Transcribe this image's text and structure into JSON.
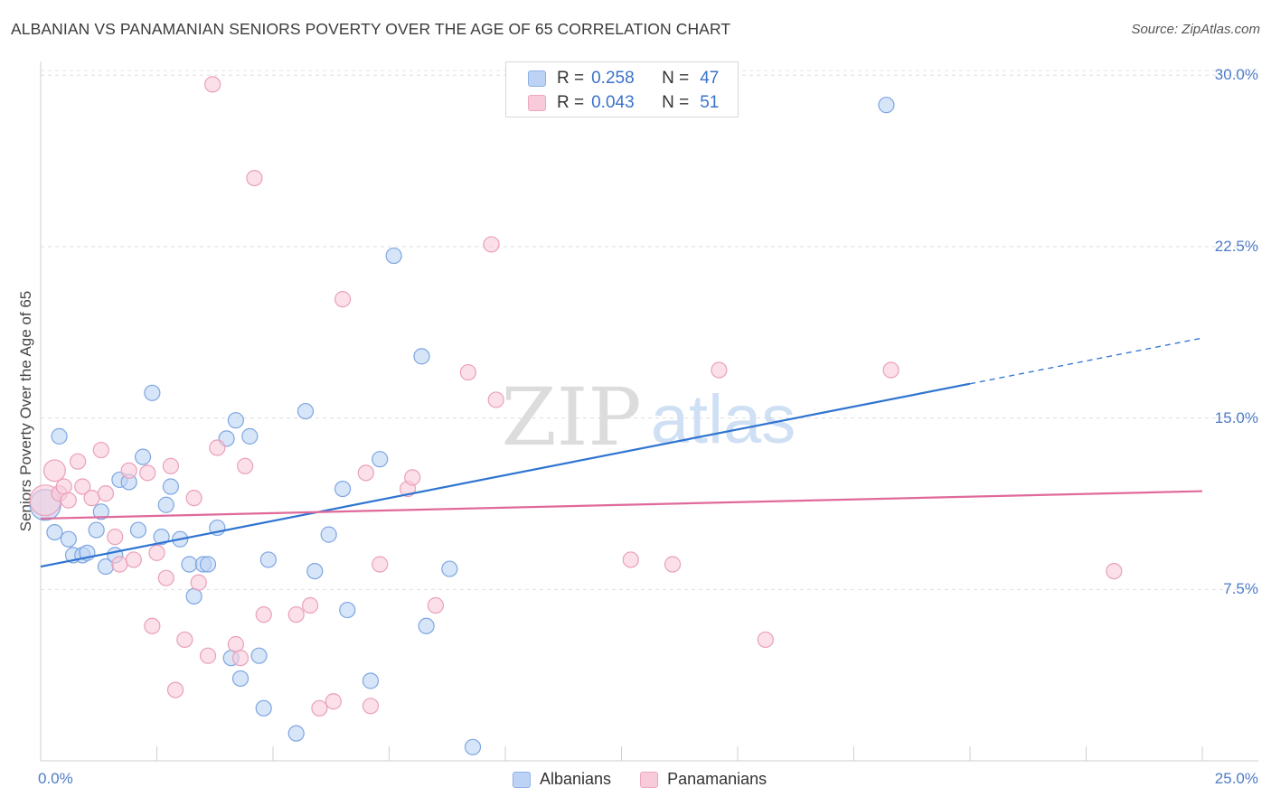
{
  "title": "ALBANIAN VS PANAMANIAN SENIORS POVERTY OVER THE AGE OF 65 CORRELATION CHART",
  "source": "Source: ZipAtlas.com",
  "watermark": {
    "zip": "ZIP",
    "atlas": "atlas"
  },
  "legend": {
    "r_label": "R =",
    "n_label": "N =",
    "albanians": {
      "r": "0.258",
      "n": "47"
    },
    "panamanians": {
      "r": "0.043",
      "n": "51"
    }
  },
  "bottom_legend": {
    "albanians": "Albanians",
    "panamanians": "Panamanians"
  },
  "colors": {
    "albanians_fill": "#bcd3f5",
    "albanians_stroke": "#7ea6e0",
    "albanians_line": "#2f74d0",
    "panamanians_fill": "#f9cbda",
    "panamanians_stroke": "#eaa0ba",
    "panamanians_line": "#e0699a",
    "tick_label": "#4d7cc7"
  },
  "chart_data": {
    "type": "scatter",
    "title": "ALBANIAN VS PANAMANIAN SENIORS POVERTY OVER THE AGE OF 65 CORRELATION CHART",
    "xlabel": "",
    "ylabel": "Seniors Poverty Over the Age of 65",
    "xlim": [
      0,
      25
    ],
    "ylim": [
      0,
      31
    ],
    "x_tick_labels": {
      "left": "0.0%",
      "right": "25.0%"
    },
    "y_ticks": [
      {
        "value": 7.5,
        "label": "7.5%"
      },
      {
        "value": 15.0,
        "label": "15.0%"
      },
      {
        "value": 22.5,
        "label": "22.5%"
      },
      {
        "value": 30.0,
        "label": "30.0%"
      }
    ],
    "series": [
      {
        "name": "Albanians",
        "r": 0.258,
        "n": 47,
        "trend": {
          "x0": 0,
          "y0": 8.5,
          "x1": 20.0,
          "y1": 16.5,
          "dash_to_x": 25.0,
          "dash_to_y": 18.5
        },
        "points": [
          [
            0.1,
            11.2,
            2
          ],
          [
            0.3,
            10.0,
            1
          ],
          [
            0.4,
            14.2,
            1
          ],
          [
            0.6,
            9.7,
            1
          ],
          [
            0.7,
            9.0,
            1
          ],
          [
            0.9,
            9.0,
            1
          ],
          [
            1.0,
            9.1,
            1
          ],
          [
            1.2,
            10.1,
            1
          ],
          [
            1.3,
            10.9,
            1
          ],
          [
            1.4,
            8.5,
            1
          ],
          [
            1.6,
            9.0,
            1
          ],
          [
            1.7,
            12.3,
            1
          ],
          [
            1.9,
            12.2,
            1
          ],
          [
            2.1,
            10.1,
            1
          ],
          [
            2.2,
            13.3,
            1
          ],
          [
            2.4,
            16.1,
            1
          ],
          [
            2.6,
            9.8,
            1
          ],
          [
            2.7,
            11.2,
            1
          ],
          [
            2.8,
            12.0,
            1
          ],
          [
            3.0,
            9.7,
            1
          ],
          [
            3.2,
            8.6,
            1
          ],
          [
            3.3,
            7.2,
            1
          ],
          [
            3.5,
            8.6,
            1
          ],
          [
            3.6,
            8.6,
            1
          ],
          [
            3.8,
            10.2,
            1
          ],
          [
            4.0,
            14.1,
            1
          ],
          [
            4.2,
            14.9,
            1
          ],
          [
            4.3,
            3.6,
            1
          ],
          [
            4.5,
            14.2,
            1
          ],
          [
            4.1,
            4.5,
            1
          ],
          [
            4.7,
            4.6,
            1
          ],
          [
            4.8,
            2.3,
            1
          ],
          [
            4.9,
            8.8,
            1
          ],
          [
            5.5,
            1.2,
            1
          ],
          [
            5.7,
            15.3,
            1
          ],
          [
            5.9,
            8.3,
            1
          ],
          [
            6.2,
            9.9,
            1
          ],
          [
            6.5,
            11.9,
            1
          ],
          [
            6.6,
            6.6,
            1
          ],
          [
            7.1,
            3.5,
            1
          ],
          [
            7.3,
            13.2,
            1
          ],
          [
            7.6,
            22.1,
            1
          ],
          [
            8.2,
            17.7,
            1
          ],
          [
            8.3,
            5.9,
            1
          ],
          [
            8.8,
            8.4,
            1
          ],
          [
            9.3,
            0.6,
            1
          ],
          [
            18.2,
            28.7,
            1
          ]
        ]
      },
      {
        "name": "Panamanians",
        "r": 0.043,
        "n": 51,
        "trend": {
          "x0": 0,
          "y0": 10.6,
          "x1": 25.0,
          "y1": 11.8
        },
        "points": [
          [
            0.1,
            11.4,
            2
          ],
          [
            0.3,
            12.7,
            1.4
          ],
          [
            0.4,
            11.7,
            1
          ],
          [
            0.5,
            12.0,
            1
          ],
          [
            0.6,
            11.4,
            1
          ],
          [
            0.8,
            13.1,
            1
          ],
          [
            0.9,
            12.0,
            1
          ],
          [
            1.1,
            11.5,
            1
          ],
          [
            1.3,
            13.6,
            1
          ],
          [
            1.4,
            11.7,
            1
          ],
          [
            1.6,
            9.8,
            1
          ],
          [
            1.7,
            8.6,
            1
          ],
          [
            1.9,
            12.7,
            1
          ],
          [
            2.0,
            8.8,
            1
          ],
          [
            2.3,
            12.6,
            1
          ],
          [
            2.4,
            5.9,
            1
          ],
          [
            2.5,
            9.1,
            1
          ],
          [
            2.7,
            8.0,
            1
          ],
          [
            2.8,
            12.9,
            1
          ],
          [
            2.9,
            3.1,
            1
          ],
          [
            3.1,
            5.3,
            1
          ],
          [
            3.3,
            11.5,
            1
          ],
          [
            3.4,
            7.8,
            1
          ],
          [
            3.6,
            4.6,
            1
          ],
          [
            3.7,
            29.6,
            1
          ],
          [
            3.8,
            13.7,
            1
          ],
          [
            4.2,
            5.1,
            1
          ],
          [
            4.3,
            4.5,
            1
          ],
          [
            4.4,
            12.9,
            1
          ],
          [
            4.6,
            25.5,
            1
          ],
          [
            4.8,
            6.4,
            1
          ],
          [
            5.5,
            6.4,
            1
          ],
          [
            5.8,
            6.8,
            1
          ],
          [
            6.0,
            2.3,
            1
          ],
          [
            6.3,
            2.6,
            1
          ],
          [
            6.5,
            20.2,
            1
          ],
          [
            7.0,
            12.6,
            1
          ],
          [
            7.1,
            2.4,
            1
          ],
          [
            7.3,
            8.6,
            1
          ],
          [
            7.9,
            11.9,
            1
          ],
          [
            8.0,
            12.4,
            1
          ],
          [
            8.5,
            6.8,
            1
          ],
          [
            9.2,
            17.0,
            1
          ],
          [
            9.7,
            22.6,
            1
          ],
          [
            9.8,
            15.8,
            1
          ],
          [
            12.7,
            8.8,
            1
          ],
          [
            13.6,
            8.6,
            1
          ],
          [
            14.6,
            17.1,
            1
          ],
          [
            15.6,
            5.3,
            1
          ],
          [
            18.3,
            17.1,
            1
          ],
          [
            23.1,
            8.3,
            1
          ]
        ]
      }
    ]
  }
}
